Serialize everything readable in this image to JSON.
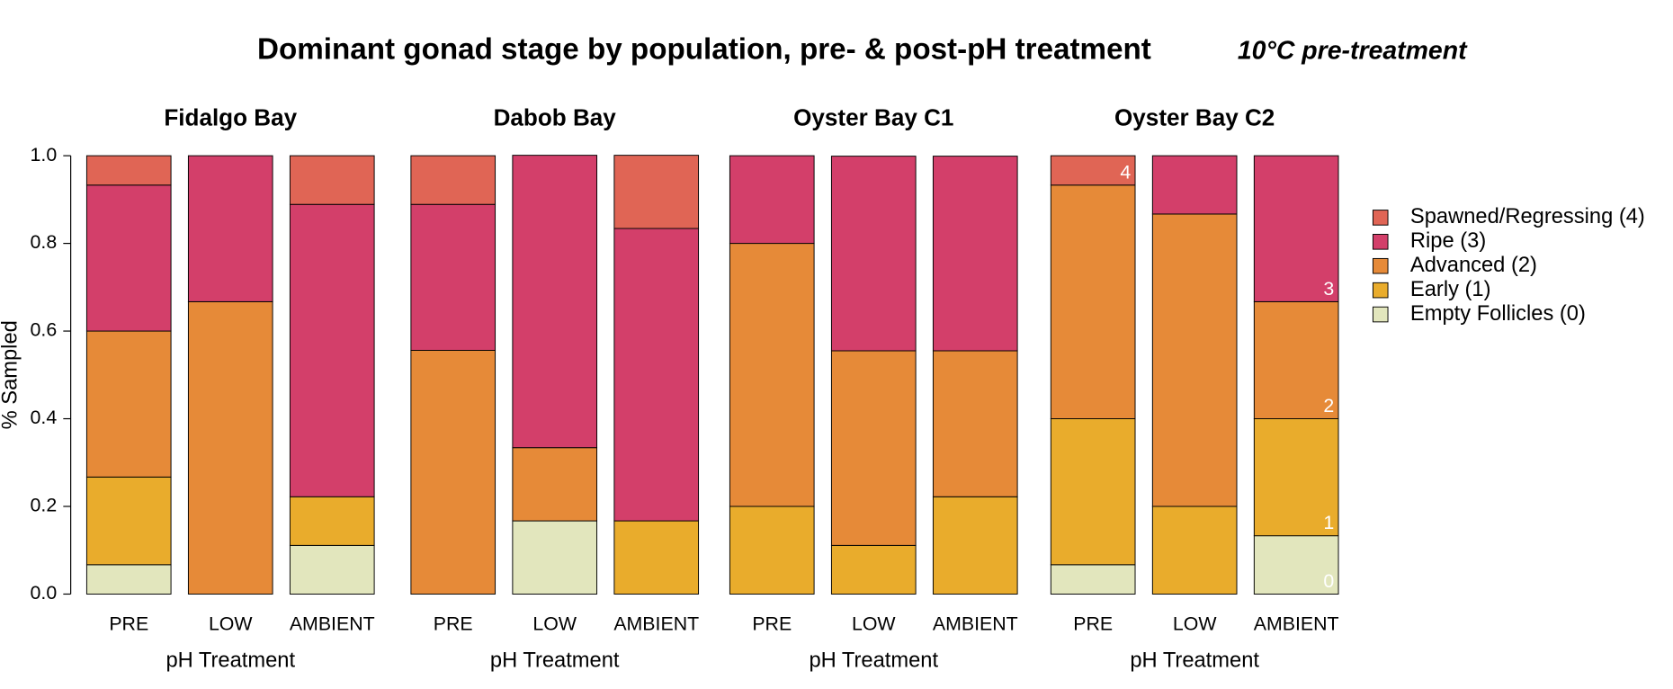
{
  "title": "Dominant gonad stage by population, pre- & post-pH treatment",
  "subtitle": "10°C pre-treatment",
  "legend": "right",
  "chart_data": [
    {
      "type": "stacked_bar",
      "title": "Fidalgo Bay",
      "xlabel": "pH Treatment",
      "ylabel": "% Sampled",
      "categories": [
        "PRE",
        "LOW",
        "AMBIENT"
      ],
      "ylim": [
        0,
        1
      ],
      "yticks": [
        {
          "value": 0,
          "label": "0.0"
        },
        0.2,
        0.4,
        0.6,
        0.8,
        {
          "value": 1,
          "label": "1.0"
        }
      ],
      "series": [
        {
          "name": "Empty Follicles (0)",
          "color": "#e2e6bd",
          "values": [
            0.067,
            0,
            0.111
          ]
        },
        {
          "name": "Early (1)",
          "color": "#e9ac2c",
          "values": [
            0.2,
            0,
            0.111
          ]
        },
        {
          "name": "Advanced (2)",
          "color": "#e68a38",
          "values": [
            0.333,
            0.667,
            0
          ]
        },
        {
          "name": "Ripe (3)",
          "color": "#d33f6a",
          "values": [
            0.333,
            0.333,
            0.667
          ]
        },
        {
          "name": "Spawned/Regressing (4)",
          "color": "#e06555",
          "values": [
            0.067,
            0,
            0.111
          ]
        }
      ]
    },
    {
      "type": "stacked_bar",
      "title": "Dabob Bay",
      "xlabel": "pH Treatment",
      "categories": [
        "PRE",
        "LOW",
        "AMBIENT"
      ],
      "ylim": [
        0,
        1
      ],
      "series": [
        {
          "color": "#e2e6bd",
          "values": [
            0,
            0.167,
            0
          ]
        },
        {
          "color": "#e9ac2c",
          "values": [
            0,
            0,
            0.167
          ]
        },
        {
          "color": "#e68a38",
          "values": [
            0.556,
            0.167,
            0
          ]
        },
        {
          "color": "#d33f6a",
          "values": [
            0.333,
            0.667,
            0.667
          ]
        },
        {
          "color": "#e06555",
          "values": [
            0.111,
            0,
            0.167
          ]
        }
      ]
    },
    {
      "type": "stacked_bar",
      "title": "Oyster Bay C1",
      "xlabel": "pH Treatment",
      "categories": [
        "PRE",
        "LOW",
        "AMBIENT"
      ],
      "ylim": [
        0,
        1
      ],
      "series": [
        {
          "color": "#e2e6bd",
          "values": [
            0,
            0,
            0
          ]
        },
        {
          "color": "#e9ac2c",
          "values": [
            0.2,
            0.111,
            0.222
          ]
        },
        {
          "color": "#e68a38",
          "values": [
            0.6,
            0.444,
            0.333
          ]
        },
        {
          "color": "#d33f6a",
          "values": [
            0.2,
            0.444,
            0.444
          ]
        },
        {
          "color": "#e06555",
          "values": [
            0,
            0,
            0
          ]
        }
      ]
    },
    {
      "type": "stacked_bar",
      "title": "Oyster Bay C2",
      "xlabel": "pH Treatment",
      "categories": [
        "PRE",
        "LOW",
        "AMBIENT"
      ],
      "ylim": [
        0,
        1
      ],
      "annotations": [
        "4",
        "3",
        "2",
        "1",
        "0"
      ],
      "series": [
        {
          "color": "#e2e6bd",
          "values": [
            0.067,
            0,
            0.133
          ]
        },
        {
          "color": "#e9ac2c",
          "values": [
            0.333,
            0.2,
            0.267
          ]
        },
        {
          "color": "#e68a38",
          "values": [
            0.533,
            0.667,
            0.267
          ]
        },
        {
          "color": "#d33f6a",
          "values": [
            0,
            0.133,
            0.333
          ]
        },
        {
          "color": "#e06555",
          "values": [
            0.067,
            0,
            0
          ]
        }
      ]
    }
  ]
}
